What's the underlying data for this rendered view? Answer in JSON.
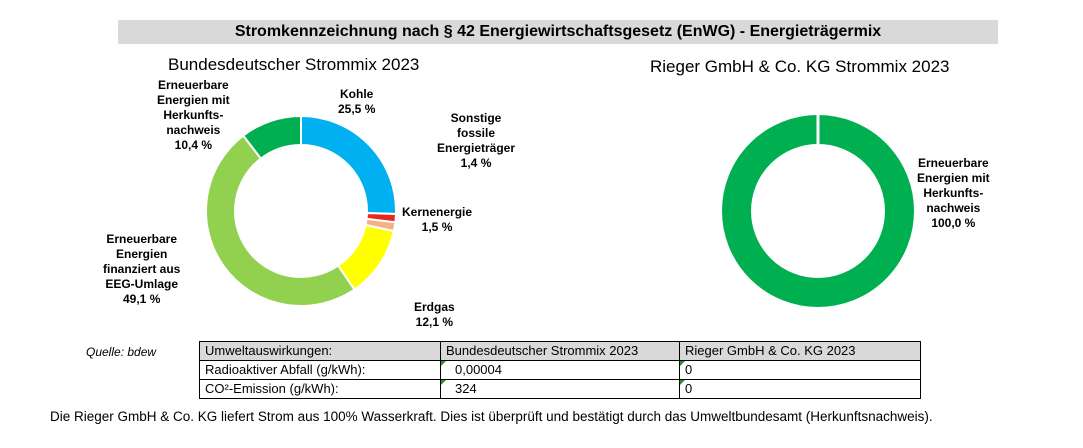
{
  "header": {
    "title": "Stromkennzeichnung nach § 42 Energiewirtschaftsgesetz (EnWG) - Energieträgermix"
  },
  "chart_data": [
    {
      "type": "pie",
      "title": "Bundesdeutscher Strommix 2023",
      "slices": [
        {
          "lines": [
            "Kohle",
            "25,5 %"
          ],
          "value": 25.5,
          "color": "#00b0f0"
        },
        {
          "lines": [
            "Sonstige",
            "fossile",
            "Energieträger",
            "1,4 %"
          ],
          "value": 1.4,
          "color": "#e32a1c"
        },
        {
          "lines": [
            "Kernenergie",
            "1,5 %"
          ],
          "value": 1.5,
          "color": "#f4b183"
        },
        {
          "lines": [
            "Erdgas",
            "12,1 %"
          ],
          "value": 12.1,
          "color": "#ffff00"
        },
        {
          "lines": [
            "Erneuerbare",
            "Energien",
            "finanziert aus",
            "EEG-Umlage",
            "49,1 %"
          ],
          "value": 49.1,
          "color": "#92d050"
        },
        {
          "lines": [
            "Erneuerbare",
            "Energien mit",
            "Herkunfts-",
            "nachweis",
            "10,4 %"
          ],
          "value": 10.4,
          "color": "#00b050"
        }
      ]
    },
    {
      "type": "pie",
      "title": "Rieger GmbH & Co. KG Strommix 2023",
      "slices": [
        {
          "lines": [
            "Erneuerbare",
            "Energien mit",
            "Herkunfts-",
            "nachweis",
            "100,0 %"
          ],
          "value": 100.0,
          "color": "#00b050"
        }
      ]
    }
  ],
  "source": "Quelle: bdew",
  "table": {
    "headers": [
      "Umweltauswirkungen:",
      "Bundesdeutscher Strommix 2023",
      "Rieger GmbH & Co. KG 2023"
    ],
    "rows": [
      [
        "Radioaktiver Abfall (g/kWh):",
        "0,00004",
        "0"
      ],
      [
        "CO²-Emission (g/kWh):",
        "324",
        "0"
      ]
    ]
  },
  "footnote": "Die Rieger GmbH & Co. KG liefert Strom aus 100% Wasserkraft. Dies ist überprüft und bestätigt durch das Umweltbundesamt (Herkunftsnachweis)."
}
